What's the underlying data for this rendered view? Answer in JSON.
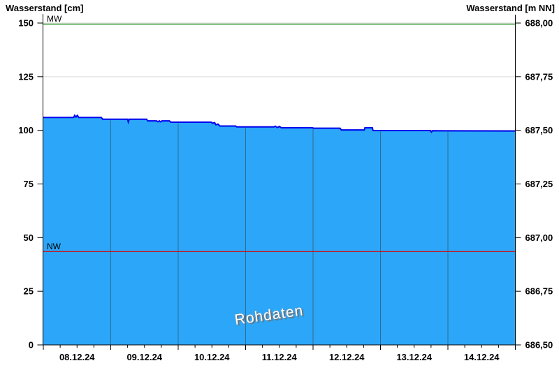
{
  "header": {
    "title_left": "Wasserstand [cm]",
    "title_right": "Wasserstand [m NN]"
  },
  "watermark": "Rohdaten",
  "thresholds": {
    "mw": {
      "label": "MW",
      "value_cm": 149.5,
      "color": "#008000"
    },
    "nw": {
      "label": "NW",
      "value_cm": 43.5,
      "color": "#dd0000"
    }
  },
  "chart_data": {
    "type": "area",
    "title": "",
    "xlabel": "",
    "ylabel_left": "Wasserstand [cm]",
    "ylabel_right": "Wasserstand [m NN]",
    "x_axis": {
      "labels": [
        "08.12.24",
        "09.12.24",
        "10.12.24",
        "11.12.24",
        "12.12.24",
        "13.12.24",
        "14.12.24"
      ],
      "days": 7,
      "minor_ticks_per_day": 4
    },
    "y_axis_left": {
      "ticks": [
        0,
        25,
        50,
        75,
        100,
        125,
        150
      ],
      "range": [
        0,
        150
      ]
    },
    "y_axis_right": {
      "tick_labels": [
        "686,50",
        "686,75",
        "687,00",
        "687,25",
        "687,50",
        "687,75",
        "688,00"
      ]
    },
    "grid": "horizontal-light",
    "series": [
      {
        "name": "Wasserstand Rohdaten",
        "unit": "cm",
        "points": [
          [
            0.0,
            106.0
          ],
          [
            0.45,
            106.0
          ],
          [
            0.465,
            107.0
          ],
          [
            0.485,
            106.2
          ],
          [
            0.505,
            107.0
          ],
          [
            0.525,
            106.0
          ],
          [
            0.86,
            106.0
          ],
          [
            0.88,
            105.2
          ],
          [
            1.25,
            105.2
          ],
          [
            1.26,
            103.9
          ],
          [
            1.275,
            105.2
          ],
          [
            1.53,
            105.2
          ],
          [
            1.55,
            104.4
          ],
          [
            1.68,
            104.4
          ],
          [
            1.7,
            104.0
          ],
          [
            1.72,
            104.4
          ],
          [
            1.74,
            104.0
          ],
          [
            1.76,
            104.4
          ],
          [
            1.87,
            104.4
          ],
          [
            1.89,
            103.8
          ],
          [
            2.49,
            103.8
          ],
          [
            2.51,
            103.3
          ],
          [
            2.54,
            103.6
          ],
          [
            2.56,
            102.6
          ],
          [
            2.59,
            102.9
          ],
          [
            2.62,
            102.0
          ],
          [
            2.85,
            102.0
          ],
          [
            2.87,
            101.6
          ],
          [
            3.42,
            101.6
          ],
          [
            3.44,
            101.9
          ],
          [
            3.47,
            101.3
          ],
          [
            3.5,
            101.8
          ],
          [
            3.53,
            101.2
          ],
          [
            3.99,
            101.2
          ],
          [
            4.01,
            101.0
          ],
          [
            4.4,
            101.0
          ],
          [
            4.42,
            100.2
          ],
          [
            4.76,
            100.2
          ],
          [
            4.77,
            101.2
          ],
          [
            4.88,
            101.2
          ],
          [
            4.89,
            99.9
          ],
          [
            5.74,
            99.9
          ],
          [
            5.755,
            99.2
          ],
          [
            5.77,
            99.8
          ],
          [
            7.0,
            99.7
          ]
        ]
      }
    ],
    "colors": {
      "fill": "#2BA6F8",
      "line": "#0000EE",
      "grid": "#D9D9D9",
      "day_separator": "#2F6E94",
      "axis": "#000000"
    }
  }
}
